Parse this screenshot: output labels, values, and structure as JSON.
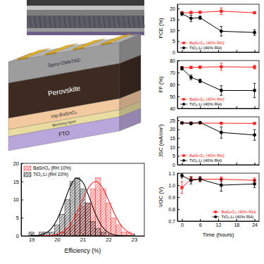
{
  "diagram": {
    "layers": [
      "Spiro-OMeTAD",
      "Perovskite",
      "mp-BaSnO₃",
      "Blocking layer",
      "FTO"
    ]
  },
  "chart_data": [
    {
      "type": "histogram",
      "xlabel": "Efficiency (%)",
      "xlim": [
        18.6,
        23.4
      ],
      "xticks": [
        19,
        20,
        21,
        22,
        23
      ],
      "ylim": [
        0,
        20
      ],
      "yticks": [
        0,
        5,
        10,
        15,
        20
      ],
      "legend": "upper left",
      "bins": [
        18.9,
        19.1,
        19.3,
        19.5,
        19.7,
        19.9,
        20.1,
        20.3,
        20.5,
        20.7,
        20.9,
        21.1,
        21.3,
        21.5,
        21.7,
        21.9,
        22.1,
        22.3,
        22.5,
        22.7,
        22.9,
        23.1
      ],
      "series": [
        {
          "name": "BaSnO₃ (RH 10%)",
          "color": "#ff2020",
          "values": [
            0,
            0,
            0,
            0,
            0,
            0,
            1,
            2,
            3,
            6,
            8,
            9,
            13,
            16,
            13,
            9,
            5,
            3,
            1,
            1,
            0
          ]
        },
        {
          "name": "TiO₂:Li (RH 10%)",
          "color": "#000000",
          "values": [
            1,
            0,
            1,
            1,
            1,
            3,
            6,
            10,
            15,
            16,
            13,
            9,
            4,
            2,
            1,
            0,
            0,
            0,
            0,
            0,
            0
          ]
        },
        {
          "type": "line",
          "color": "#ff2020",
          "x": [
            19,
            19.25,
            19.5,
            19.75,
            20,
            20.25,
            20.5,
            20.75,
            21,
            21.25,
            21.5,
            21.75,
            22,
            22.25,
            22.5,
            22.75,
            23
          ],
          "values": [
            0,
            0,
            0.02,
            0.1,
            0.36,
            1.14,
            2.87,
            5.92,
            9.93,
            13.5,
            15,
            13.5,
            9.93,
            5.92,
            2.87,
            1.14,
            0.36
          ]
        },
        {
          "type": "line",
          "color": "#000000",
          "x": [
            19,
            19.25,
            19.5,
            19.75,
            20,
            20.25,
            20.5,
            20.75,
            21,
            21.25,
            21.5,
            21.75,
            22,
            22.25,
            22.5,
            22.75,
            23
          ],
          "values": [
            0.02,
            0.13,
            0.54,
            1.76,
            4.45,
            8.74,
            13.4,
            15.9,
            14.8,
            10.7,
            6.0,
            2.63,
            0.9,
            0.24,
            0.05,
            0.01,
            0
          ]
        }
      ]
    },
    {
      "type": "line",
      "ylabel": "PCE (%)",
      "x": [
        0,
        3,
        6,
        13,
        24
      ],
      "xlim": [
        -1.5,
        25.5
      ],
      "xticks": [
        0,
        6,
        12,
        18,
        24
      ],
      "ylim": [
        0,
        22
      ],
      "yticks": [
        0,
        5,
        10,
        15,
        20
      ],
      "tick_labels": "y",
      "legend": "lower left",
      "series": [
        {
          "name": "BaSnO₃ (40% RH)",
          "color": "#ff2020",
          "marker": "square",
          "values": [
            18.0,
            18.2,
            18.3,
            18.8,
            18.1
          ],
          "errors": [
            0.6,
            0.5,
            0.4,
            1.5,
            0.5
          ]
        },
        {
          "name": "TiO₂:Li (40% RH)",
          "color": "#000000",
          "marker": "circle",
          "values": [
            17.6,
            15.5,
            15.8,
            9.6,
            9.0
          ],
          "errors": [
            0.8,
            1.5,
            0.8,
            2.2,
            1.3
          ]
        }
      ]
    },
    {
      "type": "line",
      "ylabel": "FF (%)",
      "x": [
        0,
        3,
        6,
        13,
        24
      ],
      "xlim": [
        -1.5,
        25.5
      ],
      "xticks": [
        0,
        6,
        12,
        18,
        24
      ],
      "ylim": [
        40,
        80
      ],
      "yticks": [
        40,
        50,
        60,
        70,
        80
      ],
      "tick_labels": "y",
      "legend": "lower left",
      "series": [
        {
          "name": "BaSnO₃ (40% RH)",
          "color": "#ff2020",
          "marker": "square",
          "values": [
            74,
            74.2,
            74.5,
            74.8,
            74.5
          ],
          "errors": [
            1,
            1,
            1,
            3,
            1.5
          ]
        },
        {
          "name": "TiO₂:Li (40% RH)",
          "color": "#000000",
          "marker": "circle",
          "values": [
            73.5,
            66,
            63,
            55,
            55
          ],
          "errors": [
            1.5,
            2,
            1.5,
            4,
            6
          ]
        }
      ]
    },
    {
      "type": "line",
      "ylabel": "JSC (mA/cm²)",
      "x": [
        0,
        3,
        6,
        13,
        24
      ],
      "xlim": [
        -1.5,
        25.5
      ],
      "xticks": [
        0,
        6,
        12,
        18,
        24
      ],
      "ylim": [
        0,
        27
      ],
      "yticks": [
        0,
        5,
        10,
        15,
        20,
        25
      ],
      "tick_labels": "y",
      "legend": "lower left",
      "series": [
        {
          "name": "BaSnO₃ (40% RH)",
          "color": "#ff2020",
          "marker": "square",
          "values": [
            23.6,
            23.5,
            23.5,
            23.4,
            23.3
          ],
          "errors": [
            0.4,
            0.3,
            0.3,
            0.4,
            0.3
          ]
        },
        {
          "name": "TiO₂:Li (40% RH)",
          "color": "#000000",
          "marker": "circle",
          "values": [
            23.6,
            23.3,
            23.8,
            18.2,
            16.8
          ],
          "errors": [
            0.4,
            0.8,
            0.3,
            3.2,
            3
          ]
        }
      ]
    },
    {
      "type": "line",
      "ylabel": "VOC (V)",
      "xlabel": "Time (hours)",
      "x": [
        0,
        3,
        6,
        13,
        24
      ],
      "xlim": [
        -1.5,
        25.5
      ],
      "xticks": [
        0,
        6,
        12,
        18,
        24
      ],
      "ylim": [
        0.7,
        1.1
      ],
      "yticks": [
        0.7,
        0.8,
        0.9,
        {
          "value": 1,
          "label": "1.0"
        },
        1.1
      ],
      "legend": "lower right",
      "series": [
        {
          "name": "BaSnO₃ (40% RH)",
          "color": "#ff2020",
          "marker": "square",
          "values": [
            0.98,
            1.05,
            1.05,
            1.05,
            1.04
          ],
          "errors": [
            0.05,
            0.02,
            0.02,
            0.02,
            0.02
          ]
        },
        {
          "name": "TiO₂:Li (40% RH)",
          "color": "#000000",
          "marker": "circle",
          "values": [
            1.08,
            1.04,
            1.05,
            1.0,
            1.01
          ],
          "errors": [
            0.02,
            0.03,
            0.02,
            0.05,
            0.03
          ]
        }
      ]
    }
  ]
}
